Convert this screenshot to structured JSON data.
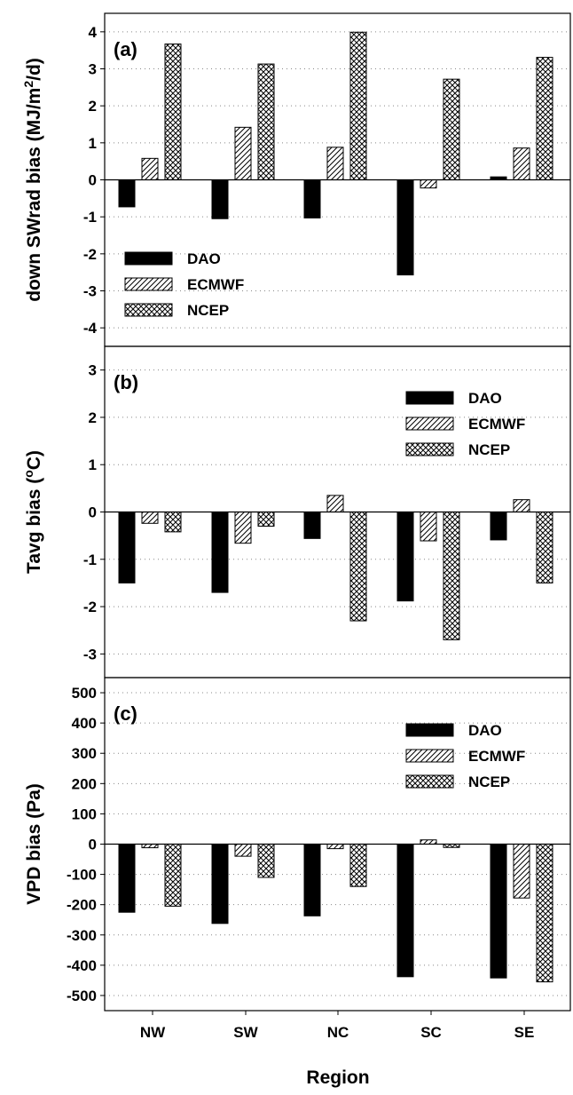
{
  "chart_data": {
    "type": "bar",
    "categories": [
      "NW",
      "SW",
      "NC",
      "SC",
      "SE"
    ],
    "xlabel": "Region",
    "legend": [
      "DAO",
      "ECMWF",
      "NCEP"
    ],
    "colors": {
      "DAO": "#000000",
      "ECMWF": "#ffffff",
      "NCEP": "#ffffff",
      "grid": "#888888"
    },
    "patterns": {
      "DAO": "solid",
      "ECMWF": "diagonal-hatch",
      "NCEP": "crosshatch"
    },
    "panels": [
      {
        "label": "(a)",
        "ylabel": "down SWrad bias (MJ/m²/d)",
        "ylim": [
          -4.5,
          4.5
        ],
        "yticks": [
          -4,
          -3,
          -2,
          -1,
          0,
          1,
          2,
          3,
          4
        ],
        "legend_position": "bottom-left",
        "series": [
          {
            "name": "DAO",
            "values": [
              -0.73,
              -1.05,
              -1.03,
              -2.57,
              0.08
            ]
          },
          {
            "name": "ECMWF",
            "values": [
              0.58,
              1.42,
              0.88,
              -0.22,
              0.86
            ]
          },
          {
            "name": "NCEP",
            "values": [
              3.67,
              3.13,
              3.99,
              2.72,
              3.31
            ]
          }
        ]
      },
      {
        "label": "(b)",
        "ylabel": "Tavg bias (°C)",
        "ylim": [
          -3.5,
          3.5
        ],
        "yticks": [
          -3,
          -2,
          -1,
          0,
          1,
          2,
          3
        ],
        "legend_position": "top-right",
        "series": [
          {
            "name": "DAO",
            "values": [
              -1.5,
              -1.7,
              -0.56,
              -1.88,
              -0.59
            ]
          },
          {
            "name": "ECMWF",
            "values": [
              -0.24,
              -0.66,
              0.35,
              -0.61,
              0.26
            ]
          },
          {
            "name": "NCEP",
            "values": [
              -0.42,
              -0.3,
              -2.3,
              -2.7,
              -1.5
            ]
          }
        ]
      },
      {
        "label": "(c)",
        "ylabel": "VPD bias (Pa)",
        "ylim": [
          -550,
          550
        ],
        "yticks": [
          -500,
          -400,
          -300,
          -200,
          -100,
          0,
          100,
          200,
          300,
          400,
          500
        ],
        "legend_position": "top-right",
        "series": [
          {
            "name": "DAO",
            "values": [
              -225,
              -262,
              -237,
              -438,
              -442
            ]
          },
          {
            "name": "ECMWF",
            "values": [
              -12,
              -40,
              -15,
              14,
              -178
            ]
          },
          {
            "name": "NCEP",
            "values": [
              -205,
              -110,
              -140,
              -11,
              -455
            ]
          }
        ]
      }
    ]
  }
}
